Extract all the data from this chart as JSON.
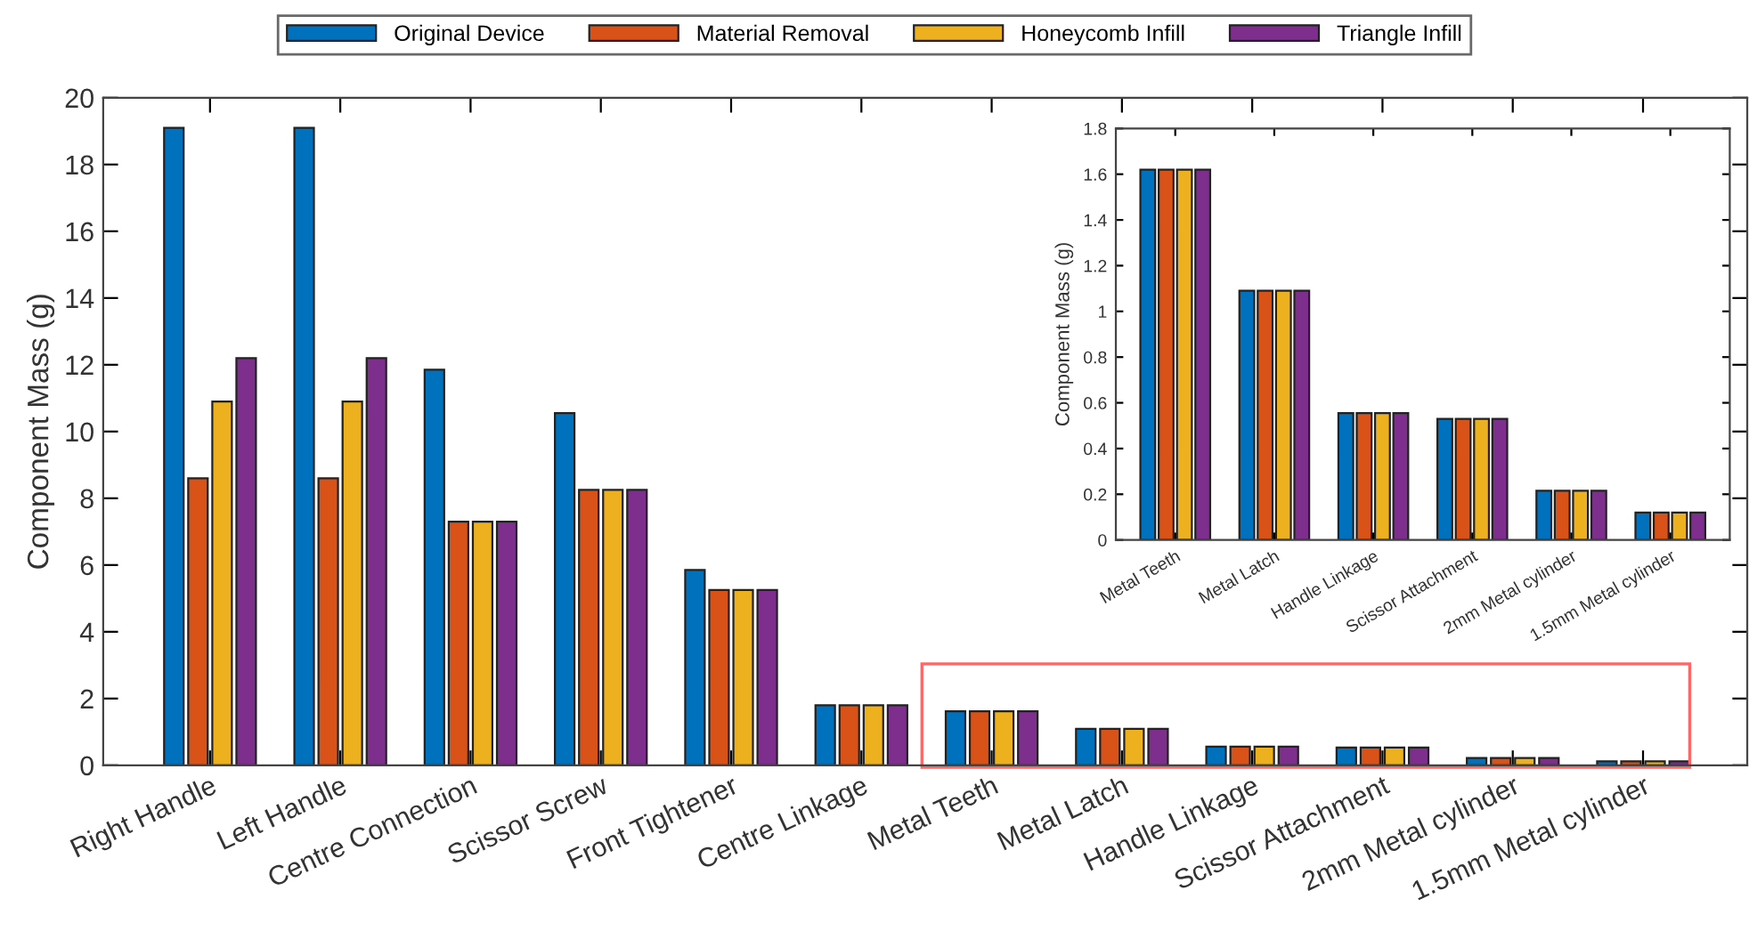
{
  "chart_data": [
    {
      "type": "bar",
      "ylabel": "Component Mass (g)",
      "categories": [
        "Right Handle",
        "Left Handle",
        "Centre Connection",
        "Scissor Screw",
        "Front Tightener",
        "Centre Linkage",
        "Metal Teeth",
        "Metal Latch",
        "Handle Linkage",
        "Scissor Attachment",
        "2mm Metal cylinder",
        "1.5mm Metal cylinder"
      ],
      "series": [
        {
          "name": "Original Device",
          "color": "#0072bd",
          "values": [
            19.1,
            19.1,
            11.85,
            10.55,
            5.85,
            1.8,
            1.62,
            1.09,
            0.56,
            0.53,
            0.22,
            0.12
          ]
        },
        {
          "name": "Material Removal",
          "color": "#d95319",
          "values": [
            8.6,
            8.6,
            7.3,
            8.25,
            5.25,
            1.8,
            1.62,
            1.09,
            0.56,
            0.53,
            0.22,
            0.12
          ]
        },
        {
          "name": "Honeycomb Infill",
          "color": "#edb120",
          "values": [
            10.9,
            10.9,
            7.3,
            8.25,
            5.25,
            1.8,
            1.62,
            1.09,
            0.56,
            0.53,
            0.22,
            0.12
          ]
        },
        {
          "name": "Triangle Infill",
          "color": "#7e2f8e",
          "values": [
            12.2,
            12.2,
            7.3,
            8.25,
            5.25,
            1.8,
            1.62,
            1.09,
            0.56,
            0.53,
            0.22,
            0.12
          ]
        }
      ],
      "ylim": [
        0,
        20
      ],
      "yticks": [
        0,
        2,
        4,
        6,
        8,
        10,
        12,
        14,
        16,
        18,
        20
      ],
      "legend": "top",
      "grid": false
    },
    {
      "type": "bar",
      "ylabel": "Component Mass (g)",
      "categories": [
        "Metal Teeth",
        "Metal Latch",
        "Handle Linkage",
        "Scissor Attachment",
        "2mm Metal cylinder",
        "1.5mm Metal cylinder"
      ],
      "series": [
        {
          "color": "#0072bd",
          "values": [
            1.62,
            1.09,
            0.555,
            0.53,
            0.215,
            0.12
          ]
        },
        {
          "color": "#d95319",
          "values": [
            1.62,
            1.09,
            0.555,
            0.53,
            0.215,
            0.12
          ]
        },
        {
          "color": "#edb120",
          "values": [
            1.62,
            1.09,
            0.555,
            0.53,
            0.215,
            0.12
          ]
        },
        {
          "color": "#7e2f8e",
          "values": [
            1.62,
            1.09,
            0.555,
            0.53,
            0.215,
            0.12
          ]
        }
      ],
      "ylim": [
        0,
        1.8
      ],
      "yticks": [
        0,
        0.2,
        0.4,
        0.6,
        0.8,
        1,
        1.2,
        1.4,
        1.6,
        1.8
      ],
      "legend": false,
      "grid": false
    }
  ]
}
